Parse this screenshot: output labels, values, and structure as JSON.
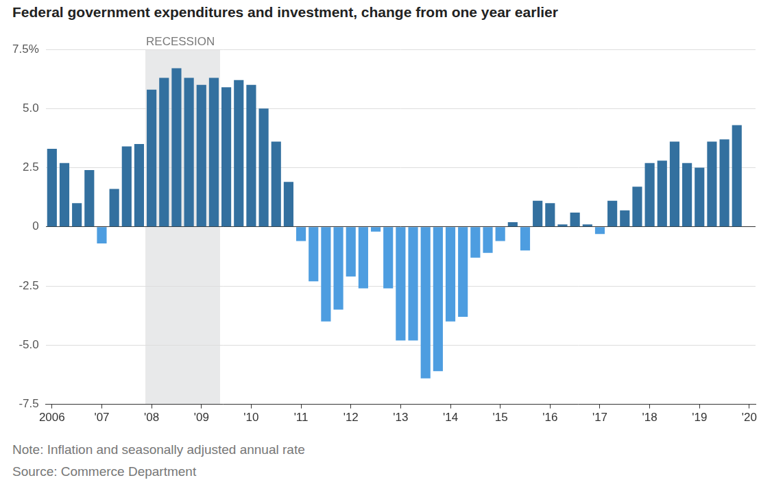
{
  "chart_data": {
    "type": "bar",
    "title": "Federal government expenditures and investment, change from one year earlier",
    "notes": [
      "Note: Inflation and seasonally adjusted annual rate",
      "Source: Commerce Department"
    ],
    "categories": [
      "2006",
      null,
      null,
      null,
      "'07",
      null,
      null,
      null,
      "'08",
      null,
      null,
      null,
      "'09",
      null,
      null,
      null,
      "'10",
      null,
      null,
      null,
      "'11",
      null,
      null,
      null,
      "'12",
      null,
      null,
      null,
      "'13",
      null,
      null,
      null,
      "'14",
      null,
      null,
      null,
      "'15",
      null,
      null,
      null,
      "'16",
      null,
      null,
      null,
      "'17",
      null,
      null,
      null,
      "'18",
      null,
      null,
      null,
      "'19",
      null,
      null,
      null,
      "'20"
    ],
    "values": [
      3.3,
      2.7,
      1.0,
      2.4,
      -0.7,
      1.6,
      3.4,
      3.5,
      5.8,
      6.3,
      6.7,
      6.3,
      6.0,
      6.3,
      5.9,
      6.2,
      6.0,
      5.0,
      3.6,
      1.9,
      -0.6,
      -2.3,
      -4.0,
      -3.5,
      -2.1,
      -2.6,
      -0.2,
      -2.6,
      -4.8,
      -4.8,
      -6.4,
      -6.1,
      -4.0,
      -3.8,
      -1.3,
      -1.1,
      -0.6,
      0.2,
      -1.0,
      1.1,
      1.0,
      0.1,
      0.6,
      0.1,
      -0.3,
      1.1,
      0.7,
      1.7,
      2.7,
      2.8,
      3.6,
      2.7,
      2.5,
      3.6,
      3.7,
      4.3,
      null
    ],
    "colors": [
      "#33709f",
      "#33709f",
      "#33709f",
      "#33709f",
      "#4d9de0",
      "#33709f",
      "#33709f",
      "#33709f",
      "#33709f",
      "#33709f",
      "#33709f",
      "#33709f",
      "#33709f",
      "#33709f",
      "#33709f",
      "#33709f",
      "#33709f",
      "#33709f",
      "#33709f",
      "#33709f",
      "#4d9de0",
      "#4d9de0",
      "#4d9de0",
      "#4d9de0",
      "#4d9de0",
      "#4d9de0",
      "#4d9de0",
      "#4d9de0",
      "#4d9de0",
      "#4d9de0",
      "#4d9de0",
      "#4d9de0",
      "#4d9de0",
      "#4d9de0",
      "#4d9de0",
      "#4d9de0",
      "#4d9de0",
      "#33709f",
      "#4d9de0",
      "#33709f",
      "#33709f",
      "#33709f",
      "#33709f",
      "#33709f",
      "#4d9de0",
      "#33709f",
      "#33709f",
      "#33709f",
      "#33709f",
      "#33709f",
      "#33709f",
      "#33709f",
      "#33709f",
      "#33709f",
      "#33709f",
      "#33709f",
      null
    ],
    "ylim": [
      -7.5,
      7.5
    ],
    "yticks": [
      {
        "value": 7.5,
        "label": "7.5%"
      },
      {
        "value": 5,
        "label": "5.0"
      },
      2.5,
      0,
      -2.5,
      {
        "value": -5,
        "label": "-5.0"
      },
      -7.5
    ],
    "grid": true,
    "shaded_ranges": [
      {
        "label": "RECESSION",
        "start_index": 8,
        "end_index": 13
      }
    ]
  }
}
